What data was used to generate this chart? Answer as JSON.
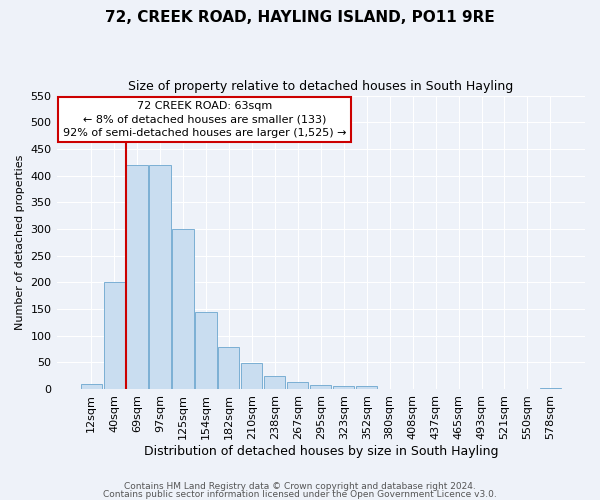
{
  "title": "72, CREEK ROAD, HAYLING ISLAND, PO11 9RE",
  "subtitle": "Size of property relative to detached houses in South Hayling",
  "xlabel": "Distribution of detached houses by size in South Hayling",
  "ylabel": "Number of detached properties",
  "bar_labels": [
    "12sqm",
    "40sqm",
    "69sqm",
    "97sqm",
    "125sqm",
    "154sqm",
    "182sqm",
    "210sqm",
    "238sqm",
    "267sqm",
    "295sqm",
    "323sqm",
    "352sqm",
    "380sqm",
    "408sqm",
    "437sqm",
    "465sqm",
    "493sqm",
    "521sqm",
    "550sqm",
    "578sqm"
  ],
  "bar_values": [
    10,
    200,
    420,
    420,
    300,
    145,
    78,
    48,
    25,
    13,
    8,
    5,
    5,
    0,
    0,
    0,
    0,
    0,
    0,
    0,
    2
  ],
  "bar_color": "#c9ddf0",
  "bar_edge_color": "#7aafd4",
  "vline_color": "#cc0000",
  "vline_x_index": 2,
  "ylim": [
    0,
    550
  ],
  "yticks": [
    0,
    50,
    100,
    150,
    200,
    250,
    300,
    350,
    400,
    450,
    500,
    550
  ],
  "annotation_title": "72 CREEK ROAD: 63sqm",
  "annotation_line1": "← 8% of detached houses are smaller (133)",
  "annotation_line2": "92% of semi-detached houses are larger (1,525) →",
  "annotation_box_color": "#ffffff",
  "annotation_box_edge": "#cc0000",
  "footer_line1": "Contains HM Land Registry data © Crown copyright and database right 2024.",
  "footer_line2": "Contains public sector information licensed under the Open Government Licence v3.0.",
  "background_color": "#eef2f9",
  "grid_color": "#ffffff",
  "title_fontsize": 11,
  "subtitle_fontsize": 9,
  "xlabel_fontsize": 9,
  "ylabel_fontsize": 8,
  "tick_fontsize": 8,
  "annotation_fontsize": 8,
  "footer_fontsize": 6.5
}
